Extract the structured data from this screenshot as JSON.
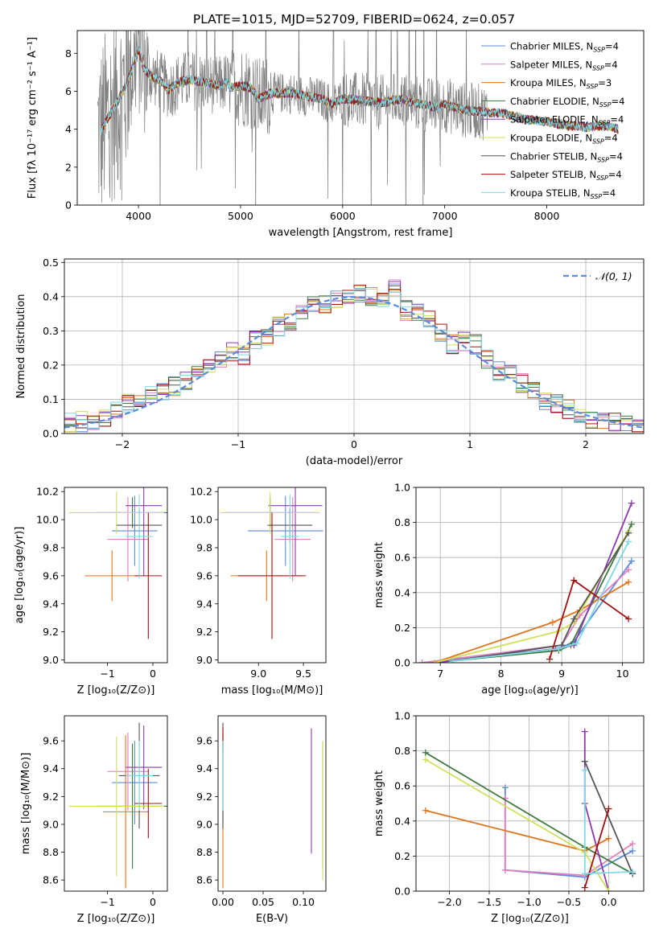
{
  "page_title": "PLATE=1015, MJD=52709, FIBERID=0624, z=0.057",
  "colors": {
    "Chabrier MILES": "#5b8bd9",
    "Salpeter MILES": "#e27fbf",
    "Kroupa MILES": "#e0741a",
    "Chabrier ELODIE": "#3f7a3f",
    "Salpeter ELODIE": "#8e3ab0",
    "Kroupa ELODIE": "#cfe05a",
    "Chabrier STELIB": "#555555",
    "Salpeter STELIB": "#a31010",
    "Kroupa STELIB": "#7fd8e3",
    "data": "#808080",
    "gaussian": "#5b8bd9"
  },
  "chart_data": [
    {
      "type": "line",
      "id": "spectrum",
      "title": "PLATE=1015, MJD=52709, FIBERID=0624, z=0.057",
      "xlabel": "wavelength [Angstrom, rest frame]",
      "ylabel": "Flux [fλ 10⁻¹⁷ erg cm⁻² s⁻¹ A⁻¹]",
      "xlim": [
        3400,
        8950
      ],
      "ylim": [
        0,
        9.2
      ],
      "xticks": [
        "4000",
        "5000",
        "6000",
        "7000",
        "8000"
      ],
      "yticks": [
        "0",
        "2",
        "4",
        "6",
        "8"
      ],
      "grid": false,
      "legend_position": "top-right",
      "legend": [
        {
          "name": "Chabrier MILES",
          "nssp": "4"
        },
        {
          "name": "Salpeter MILES",
          "nssp": "4"
        },
        {
          "name": "Kroupa MILES",
          "nssp": "3"
        },
        {
          "name": "Chabrier ELODIE",
          "nssp": "4"
        },
        {
          "name": "Salpeter ELODIE",
          "nssp": "4"
        },
        {
          "name": "Kroupa ELODIE",
          "nssp": "4"
        },
        {
          "name": "Chabrier STELIB",
          "nssp": "4"
        },
        {
          "name": "Salpeter STELIB",
          "nssp": "4"
        },
        {
          "name": "Kroupa STELIB",
          "nssp": "4"
        }
      ],
      "legend_suffix": "N",
      "legend_subscript": "SSP",
      "model_points": {
        "x": [
          3630,
          3700,
          3800,
          3900,
          3950,
          4000,
          4050,
          4100,
          4200,
          4300,
          4400,
          4500,
          4600,
          4700,
          4800,
          4861,
          4900,
          5000,
          5100,
          5175,
          5300,
          5400,
          5500,
          5600,
          5800,
          5890,
          6000,
          6200,
          6400,
          6563,
          6700,
          6900,
          7000,
          7200,
          7400,
          7600,
          7800,
          8000,
          8200,
          8400,
          8600,
          8700
        ],
        "y": [
          3.9,
          4.6,
          5.5,
          6.6,
          7.4,
          8.2,
          7.2,
          6.9,
          6.6,
          6.1,
          6.5,
          6.6,
          6.5,
          6.4,
          6.3,
          6.5,
          6.2,
          6.3,
          6.2,
          5.6,
          5.9,
          5.9,
          5.9,
          5.8,
          5.6,
          5.3,
          5.6,
          5.5,
          5.4,
          5.6,
          5.4,
          5.2,
          5.3,
          5.0,
          4.9,
          4.8,
          4.5,
          4.4,
          4.2,
          4.1,
          4.2,
          4.0
        ]
      }
    },
    {
      "type": "bar",
      "id": "residuals",
      "xlabel": "(data-model)/error",
      "ylabel": "Normed distribution",
      "xlim": [
        -2.5,
        2.5
      ],
      "ylim": [
        0,
        0.51
      ],
      "xticks": [
        "−2",
        "−1",
        "0",
        "1",
        "2"
      ],
      "yticks": [
        "0.0",
        "0.1",
        "0.2",
        "0.3",
        "0.4",
        "0.5"
      ],
      "grid": true,
      "legend_position": "top-right",
      "legend": [
        "𝒩(0, 1)"
      ],
      "bin_width": 0.1,
      "base_histogram": {
        "x": [
          -2.45,
          -2.35,
          -2.25,
          -2.15,
          -2.05,
          -1.95,
          -1.85,
          -1.75,
          -1.65,
          -1.55,
          -1.45,
          -1.35,
          -1.25,
          -1.15,
          -1.05,
          -0.95,
          -0.85,
          -0.75,
          -0.65,
          -0.55,
          -0.45,
          -0.35,
          -0.25,
          -0.15,
          -0.05,
          0.05,
          0.15,
          0.25,
          0.35,
          0.45,
          0.55,
          0.65,
          0.75,
          0.85,
          0.95,
          1.05,
          1.15,
          1.25,
          1.35,
          1.45,
          1.55,
          1.65,
          1.75,
          1.85,
          1.95,
          2.05,
          2.15,
          2.25,
          2.35,
          2.45
        ],
        "values": [
          0.03,
          0.035,
          0.03,
          0.04,
          0.07,
          0.085,
          0.09,
          0.11,
          0.12,
          0.14,
          0.15,
          0.17,
          0.2,
          0.22,
          0.24,
          0.23,
          0.27,
          0.28,
          0.31,
          0.33,
          0.35,
          0.37,
          0.38,
          0.39,
          0.4,
          0.41,
          0.4,
          0.38,
          0.42,
          0.36,
          0.35,
          0.33,
          0.29,
          0.26,
          0.27,
          0.26,
          0.22,
          0.18,
          0.17,
          0.15,
          0.12,
          0.1,
          0.085,
          0.07,
          0.055,
          0.045,
          0.04,
          0.03,
          0.025,
          0.02
        ]
      },
      "gaussian": {
        "mu": 0,
        "sigma": 1
      }
    },
    {
      "type": "scatter",
      "id": "age_vs_Z",
      "xlabel": "Z [log₁₀(Z/Z⊙)]",
      "ylabel": "age  [log₁₀(age/yr)]",
      "xlim": [
        -1.95,
        0.32
      ],
      "ylim": [
        8.98,
        10.23
      ],
      "xticks": [
        "−1",
        "0"
      ],
      "yticks": [
        "9.0",
        "9.2",
        "9.4",
        "9.6",
        "9.8",
        "10.0",
        "10.2"
      ],
      "points": [
        {
          "model": "Chabrier MILES",
          "x": -0.4,
          "xerr": 0.5,
          "y": 9.92,
          "yerr": 0.25
        },
        {
          "model": "Salpeter MILES",
          "x": -0.55,
          "xerr": 0.45,
          "y": 9.86,
          "yerr": 0.3
        },
        {
          "model": "Kroupa MILES",
          "x": -0.9,
          "xerr": 0.6,
          "y": 9.6,
          "yerr": 0.18
        },
        {
          "model": "Chabrier ELODIE",
          "x": -0.45,
          "xerr": 0.8,
          "y": 10.05,
          "yerr": 0.11
        },
        {
          "model": "Salpeter ELODIE",
          "x": -0.2,
          "xerr": 0.4,
          "y": 10.1,
          "yerr": 0.5
        },
        {
          "model": "Kroupa ELODIE",
          "x": -0.8,
          "xerr": 1.05,
          "y": 10.05,
          "yerr": 0.15
        },
        {
          "model": "Chabrier STELIB",
          "x": -0.3,
          "xerr": 0.5,
          "y": 9.96,
          "yerr": 0.12
        },
        {
          "model": "Salpeter STELIB",
          "x": -0.1,
          "xerr": 0.3,
          "y": 9.6,
          "yerr": 0.45
        },
        {
          "model": "Kroupa STELIB",
          "x": -0.3,
          "xerr": 0.3,
          "y": 9.88,
          "yerr": 0.3
        }
      ]
    },
    {
      "type": "scatter",
      "id": "age_vs_mass",
      "xlabel": "mass [log₁₀(M/M⊙)]",
      "ylabel": "",
      "xlim": [
        8.55,
        9.75
      ],
      "ylim": [
        8.98,
        10.23
      ],
      "xticks": [
        "9.0",
        "9.5"
      ],
      "yticks": [
        "9.0",
        "9.2",
        "9.4",
        "9.6",
        "9.8",
        "10.0",
        "10.2"
      ],
      "points": [
        {
          "model": "Chabrier MILES",
          "x": 9.3,
          "xerr": 0.42,
          "y": 9.92,
          "yerr": 0.25
        },
        {
          "model": "Salpeter MILES",
          "x": 9.38,
          "xerr": 0.2,
          "y": 9.86,
          "yerr": 0.3
        },
        {
          "model": "Kroupa MILES",
          "x": 9.09,
          "xerr": 0.4,
          "y": 9.6,
          "yerr": 0.18
        },
        {
          "model": "Chabrier ELODIE",
          "x": 9.13,
          "xerr": 0.5,
          "y": 10.05,
          "yerr": 0.11
        },
        {
          "model": "Salpeter ELODIE",
          "x": 9.41,
          "xerr": 0.3,
          "y": 10.1,
          "yerr": 0.5
        },
        {
          "model": "Kroupa ELODIE",
          "x": 9.13,
          "xerr": 0.55,
          "y": 10.05,
          "yerr": 0.15
        },
        {
          "model": "Chabrier STELIB",
          "x": 9.35,
          "xerr": 0.25,
          "y": 9.96,
          "yerr": 0.12
        },
        {
          "model": "Salpeter STELIB",
          "x": 9.15,
          "xerr": 0.38,
          "y": 9.6,
          "yerr": 0.45
        },
        {
          "model": "Kroupa STELIB",
          "x": 9.35,
          "xerr": 0.1,
          "y": 9.88,
          "yerr": 0.3
        }
      ]
    },
    {
      "type": "line",
      "id": "weight_vs_age",
      "xlabel": "age  [log₁₀(age/yr)]",
      "ylabel": "mass weight",
      "xlim": [
        6.6,
        10.35
      ],
      "ylim": [
        0,
        1.0
      ],
      "xticks": [
        "7",
        "8",
        "9",
        "10"
      ],
      "yticks": [
        "0.0",
        "0.2",
        "0.4",
        "0.6",
        "0.8",
        "1.0"
      ],
      "grid": true,
      "series": [
        {
          "model": "Chabrier MILES",
          "x": [
            6.7,
            8.95,
            9.2,
            10.15
          ],
          "y": [
            0.0,
            0.08,
            0.12,
            0.58
          ]
        },
        {
          "model": "Salpeter MILES",
          "x": [
            6.7,
            9.0,
            9.3,
            10.1
          ],
          "y": [
            0.0,
            0.1,
            0.27,
            0.53
          ]
        },
        {
          "model": "Kroupa MILES",
          "x": [
            6.9,
            8.85,
            9.3,
            10.1
          ],
          "y": [
            0.0,
            0.23,
            0.3,
            0.46
          ]
        },
        {
          "model": "Chabrier ELODIE",
          "x": [
            6.9,
            8.95,
            9.15,
            10.15
          ],
          "y": [
            0.0,
            0.07,
            0.1,
            0.79
          ]
        },
        {
          "model": "Salpeter ELODIE",
          "x": [
            6.9,
            8.9,
            9.2,
            10.15
          ],
          "y": [
            0.0,
            0.08,
            0.1,
            0.91
          ]
        },
        {
          "model": "Kroupa ELODIE",
          "x": [
            6.9,
            8.95,
            9.2,
            10.1
          ],
          "y": [
            0.0,
            0.18,
            0.23,
            0.75
          ]
        },
        {
          "model": "Chabrier STELIB",
          "x": [
            7.2,
            9.0,
            9.2,
            10.1
          ],
          "y": [
            0.01,
            0.1,
            0.25,
            0.74
          ]
        },
        {
          "model": "Salpeter STELIB",
          "x": [
            8.8,
            9.2,
            10.1
          ],
          "y": [
            0.02,
            0.47,
            0.25
          ]
        },
        {
          "model": "Kroupa STELIB",
          "x": [
            7.2,
            8.95,
            9.25,
            10.1
          ],
          "y": [
            0.01,
            0.08,
            0.11,
            0.69
          ]
        }
      ]
    },
    {
      "type": "scatter",
      "id": "mass_vs_Z",
      "xlabel": "Z [log₁₀(Z/Z⊙)]",
      "ylabel": "mass [log₁₀(M/M⊙)]",
      "xlim": [
        -1.95,
        0.32
      ],
      "ylim": [
        8.52,
        9.78
      ],
      "xticks": [
        "−1",
        "0"
      ],
      "yticks": [
        "8.6",
        "8.8",
        "9.0",
        "9.2",
        "9.4",
        "9.6"
      ],
      "points": [
        {
          "model": "Chabrier MILES",
          "x": -0.4,
          "xerr": 0.5,
          "y": 9.3,
          "yerr": 0.3
        },
        {
          "model": "Salpeter MILES",
          "x": -0.55,
          "xerr": 0.45,
          "y": 9.38,
          "yerr": 0.28
        },
        {
          "model": "Kroupa MILES",
          "x": -0.6,
          "xerr": 0.5,
          "y": 9.09,
          "yerr": 0.55
        },
        {
          "model": "Chabrier ELODIE",
          "x": -0.45,
          "xerr": 0.8,
          "y": 9.13,
          "yerr": 0.45
        },
        {
          "model": "Salpeter ELODIE",
          "x": -0.2,
          "xerr": 0.4,
          "y": 9.41,
          "yerr": 0.3
        },
        {
          "model": "Kroupa ELODIE",
          "x": -0.8,
          "xerr": 1.05,
          "y": 9.13,
          "yerr": 0.5
        },
        {
          "model": "Chabrier STELIB",
          "x": -0.3,
          "xerr": 0.45,
          "y": 9.35,
          "yerr": 0.38
        },
        {
          "model": "Salpeter STELIB",
          "x": -0.1,
          "xerr": 0.3,
          "y": 9.15,
          "yerr": 0.25
        },
        {
          "model": "Kroupa STELIB",
          "x": -0.3,
          "xerr": 0.3,
          "y": 9.35,
          "yerr": 0.25
        }
      ]
    },
    {
      "type": "scatter",
      "id": "mass_vs_ebv",
      "xlabel": "E(B-V)",
      "ylabel": "",
      "xlim": [
        -0.006,
        0.128
      ],
      "ylim": [
        8.52,
        9.78
      ],
      "xticks": [
        "0.00",
        "0.05",
        "0.10"
      ],
      "yticks": [
        "8.6",
        "8.8",
        "9.0",
        "9.2",
        "9.4",
        "9.6"
      ],
      "points": [
        {
          "model": "Chabrier MILES",
          "x": 0.0,
          "y": 9.3,
          "yerr": 0.3
        },
        {
          "model": "Salpeter MILES",
          "x": 0.0,
          "y": 9.38,
          "yerr": 0.28
        },
        {
          "model": "Kroupa MILES",
          "x": 0.0,
          "y": 9.09,
          "yerr": 0.55
        },
        {
          "model": "Chabrier ELODIE",
          "x": 0.124,
          "y": 9.13,
          "yerr": 0.45
        },
        {
          "model": "Salpeter ELODIE",
          "x": 0.11,
          "y": 9.24,
          "yerr": 0.45
        },
        {
          "model": "Kroupa ELODIE",
          "x": 0.124,
          "y": 9.1,
          "yerr": 0.5
        },
        {
          "model": "Chabrier STELIB",
          "x": 0.0,
          "y": 9.35,
          "yerr": 0.38
        },
        {
          "model": "Salpeter STELIB",
          "x": 0.0,
          "y": 9.6,
          "yerr": 0.1
        },
        {
          "model": "Kroupa STELIB",
          "x": 0.0,
          "y": 9.35,
          "yerr": 0.25
        }
      ]
    },
    {
      "type": "line",
      "id": "weight_vs_Z",
      "xlabel": "Z [log₁₀(Z/Z⊙)]",
      "ylabel": "mass weight",
      "xlim": [
        -2.42,
        0.44
      ],
      "ylim": [
        0,
        1.0
      ],
      "xticks": [
        "−2.0",
        "−1.5",
        "−1.0",
        "−0.5",
        "0.0"
      ],
      "yticks": [
        "0.0",
        "0.2",
        "0.4",
        "0.6",
        "0.8",
        "1.0"
      ],
      "grid": true,
      "series": [
        {
          "model": "Chabrier MILES",
          "x": [
            -1.3,
            -1.3,
            -0.3,
            0.3
          ],
          "y": [
            0.59,
            0.12,
            0.08,
            0.23
          ]
        },
        {
          "model": "Salpeter MILES",
          "x": [
            -1.3,
            -1.3,
            -0.3,
            0.3
          ],
          "y": [
            0.53,
            0.12,
            0.09,
            0.27
          ]
        },
        {
          "model": "Kroupa MILES",
          "x": [
            -2.3,
            -0.3,
            0.0
          ],
          "y": [
            0.46,
            0.23,
            0.3
          ]
        },
        {
          "model": "Chabrier ELODIE",
          "x": [
            -2.3,
            -0.3,
            0.3
          ],
          "y": [
            0.79,
            0.25,
            0.1
          ]
        },
        {
          "model": "Salpeter ELODIE",
          "x": [
            -0.3,
            -0.3,
            0.0
          ],
          "y": [
            0.91,
            0.5,
            0.0
          ]
        },
        {
          "model": "Kroupa ELODIE",
          "x": [
            -2.3,
            -0.3,
            0.0
          ],
          "y": [
            0.75,
            0.22,
            0.0
          ]
        },
        {
          "model": "Chabrier STELIB",
          "x": [
            -0.3,
            0.3
          ],
          "y": [
            0.74,
            0.1
          ]
        },
        {
          "model": "Salpeter STELIB",
          "x": [
            -0.3,
            0.0
          ],
          "y": [
            0.02,
            0.47
          ]
        },
        {
          "model": "Kroupa STELIB",
          "x": [
            -0.3,
            -0.3,
            0.3
          ],
          "y": [
            0.69,
            0.1,
            0.11
          ]
        }
      ]
    }
  ]
}
